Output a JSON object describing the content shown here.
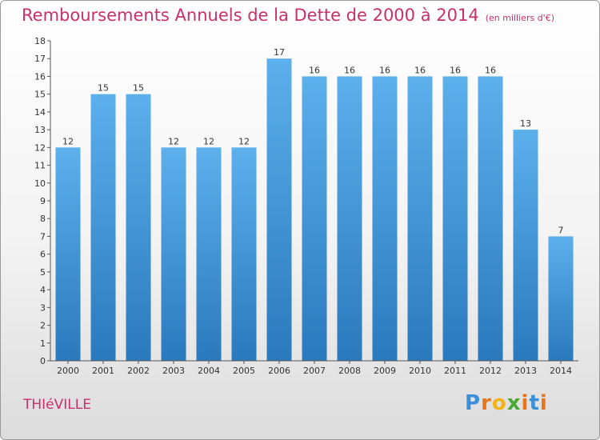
{
  "chart_data": {
    "type": "bar",
    "title": "Remboursements Annuels de la Dette de 2000 à 2014",
    "subtitle": "(en milliers d'€)",
    "categories": [
      "2000",
      "2001",
      "2002",
      "2003",
      "2004",
      "2005",
      "2006",
      "2007",
      "2008",
      "2009",
      "2010",
      "2011",
      "2012",
      "2013",
      "2014"
    ],
    "values": [
      12,
      15,
      15,
      12,
      12,
      12,
      17,
      16,
      16,
      16,
      16,
      16,
      16,
      13,
      7
    ],
    "ylim": [
      0,
      18
    ],
    "yticks": [
      0,
      1,
      2,
      3,
      4,
      5,
      6,
      7,
      8,
      9,
      10,
      11,
      12,
      13,
      14,
      15,
      16,
      17,
      18
    ],
    "bar_color": "#4a9fe0",
    "title_color": "#c7306b",
    "grid": false
  },
  "commune": "THIéVILLE",
  "logo": {
    "letters": [
      "P",
      "r",
      "o",
      "x",
      "i",
      "t",
      "i"
    ],
    "colors": [
      "#3a8fd6",
      "#e8751a",
      "#f2b21a",
      "#4aa832",
      "#e8751a",
      "#3a8fd6",
      "#e8751a"
    ]
  }
}
